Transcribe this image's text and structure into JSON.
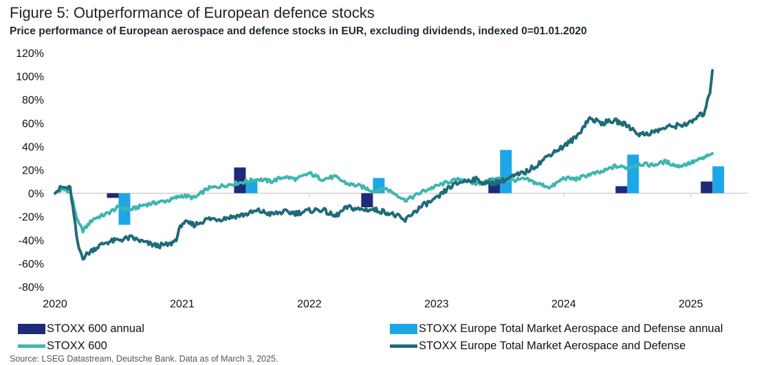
{
  "title": "Figure 5: Outperformance of European defence stocks",
  "subtitle": "Price performance of European aerospace and defence stocks in EUR, excluding dividends, indexed 0=01.01.2020",
  "source": "Source: LSEG Datastream, Deutsche Bank. Data as of March 3,  2025.",
  "colors": {
    "stoxx600_annual": "#1f2a78",
    "aero_annual": "#1ea7e6",
    "stoxx600_line": "#3fb6b0",
    "aero_line": "#1f6b7a",
    "grid": "#d9d9d9"
  },
  "legend": [
    {
      "label": "STOXX 600 annual",
      "kind": "box",
      "color": "#1f2a78"
    },
    {
      "label": "STOXX Europe Total Market Aerospace and Defense annual",
      "kind": "box",
      "color": "#1ea7e6"
    },
    {
      "label": "STOXX 600",
      "kind": "line",
      "color": "#3fb6b0"
    },
    {
      "label": "STOXX Europe Total Market Aerospace and Defense",
      "kind": "line",
      "color": "#1f6b7a"
    }
  ],
  "chart_data": {
    "type": "bar+line",
    "title": "Figure 5: Outperformance of European defence stocks",
    "ylim": [
      -80,
      120
    ],
    "yticks": [
      -80,
      -60,
      -40,
      -20,
      0,
      20,
      40,
      60,
      80,
      100,
      120
    ],
    "ytick_labels": [
      "-80%",
      "-60%",
      "-40%",
      "-20%",
      "0%",
      "20%",
      "40%",
      "60%",
      "80%",
      "100%",
      "120%"
    ],
    "xlim": [
      2020.0,
      2025.45
    ],
    "xticks": [
      2020,
      2021,
      2022,
      2023,
      2024,
      2025
    ],
    "xtick_labels": [
      "2020",
      "2021",
      "2022",
      "2023",
      "2024",
      "2025"
    ],
    "bars": {
      "x": [
        2020.5,
        2021.5,
        2022.5,
        2023.5,
        2024.5,
        2025.17
      ],
      "series": [
        {
          "name": "STOXX 600 annual",
          "values": [
            -4,
            22,
            -12,
            13,
            6,
            10
          ]
        },
        {
          "name": "STOXX Europe Total Market Aerospace and Defense annual",
          "values": [
            -27,
            10,
            13,
            37,
            33,
            23
          ]
        }
      ]
    },
    "lines": [
      {
        "name": "STOXX 600",
        "x": [
          2020.0,
          2020.05,
          2020.12,
          2020.18,
          2020.22,
          2020.3,
          2020.4,
          2020.5,
          2020.6,
          2020.7,
          2020.8,
          2020.9,
          2021.0,
          2021.1,
          2021.2,
          2021.3,
          2021.4,
          2021.5,
          2021.6,
          2021.7,
          2021.8,
          2021.9,
          2022.0,
          2022.1,
          2022.2,
          2022.3,
          2022.4,
          2022.5,
          2022.6,
          2022.7,
          2022.75,
          2022.8,
          2022.9,
          2023.0,
          2023.1,
          2023.2,
          2023.3,
          2023.4,
          2023.5,
          2023.6,
          2023.7,
          2023.8,
          2023.9,
          2024.0,
          2024.1,
          2024.2,
          2024.3,
          2024.4,
          2024.5,
          2024.6,
          2024.7,
          2024.8,
          2024.9,
          2025.0,
          2025.1,
          2025.17
        ],
        "values": [
          0,
          3,
          2,
          -25,
          -32,
          -22,
          -18,
          -12,
          -14,
          -10,
          -8,
          -6,
          -2,
          -4,
          4,
          6,
          8,
          10,
          12,
          10,
          14,
          12,
          17,
          12,
          14,
          8,
          6,
          2,
          4,
          -2,
          -6,
          -4,
          2,
          6,
          10,
          12,
          8,
          10,
          13,
          11,
          12,
          8,
          5,
          13,
          12,
          16,
          18,
          23,
          22,
          25,
          24,
          27,
          23,
          26,
          30,
          34
        ]
      },
      {
        "name": "STOXX Europe Total Market Aerospace and Defense",
        "x": [
          2020.0,
          2020.05,
          2020.12,
          2020.18,
          2020.22,
          2020.3,
          2020.4,
          2020.5,
          2020.6,
          2020.7,
          2020.8,
          2020.9,
          2020.95,
          2021.0,
          2021.1,
          2021.2,
          2021.3,
          2021.4,
          2021.5,
          2021.6,
          2021.7,
          2021.8,
          2021.9,
          2022.0,
          2022.1,
          2022.2,
          2022.3,
          2022.4,
          2022.5,
          2022.6,
          2022.7,
          2022.75,
          2022.8,
          2022.9,
          2023.0,
          2023.1,
          2023.2,
          2023.3,
          2023.4,
          2023.5,
          2023.6,
          2023.7,
          2023.8,
          2023.9,
          2024.0,
          2024.1,
          2024.2,
          2024.3,
          2024.4,
          2024.5,
          2024.6,
          2024.7,
          2024.8,
          2024.9,
          2025.0,
          2025.05,
          2025.1,
          2025.15,
          2025.17
        ],
        "values": [
          0,
          5,
          4,
          -45,
          -55,
          -48,
          -42,
          -40,
          -38,
          -42,
          -45,
          -44,
          -40,
          -25,
          -27,
          -22,
          -22,
          -20,
          -18,
          -15,
          -18,
          -16,
          -17,
          -15,
          -14,
          -20,
          -12,
          -14,
          -14,
          -16,
          -20,
          -24,
          -18,
          -10,
          -5,
          5,
          10,
          12,
          8,
          10,
          14,
          18,
          25,
          34,
          40,
          48,
          64,
          60,
          62,
          58,
          50,
          52,
          56,
          58,
          60,
          65,
          68,
          85,
          105
        ]
      }
    ]
  }
}
